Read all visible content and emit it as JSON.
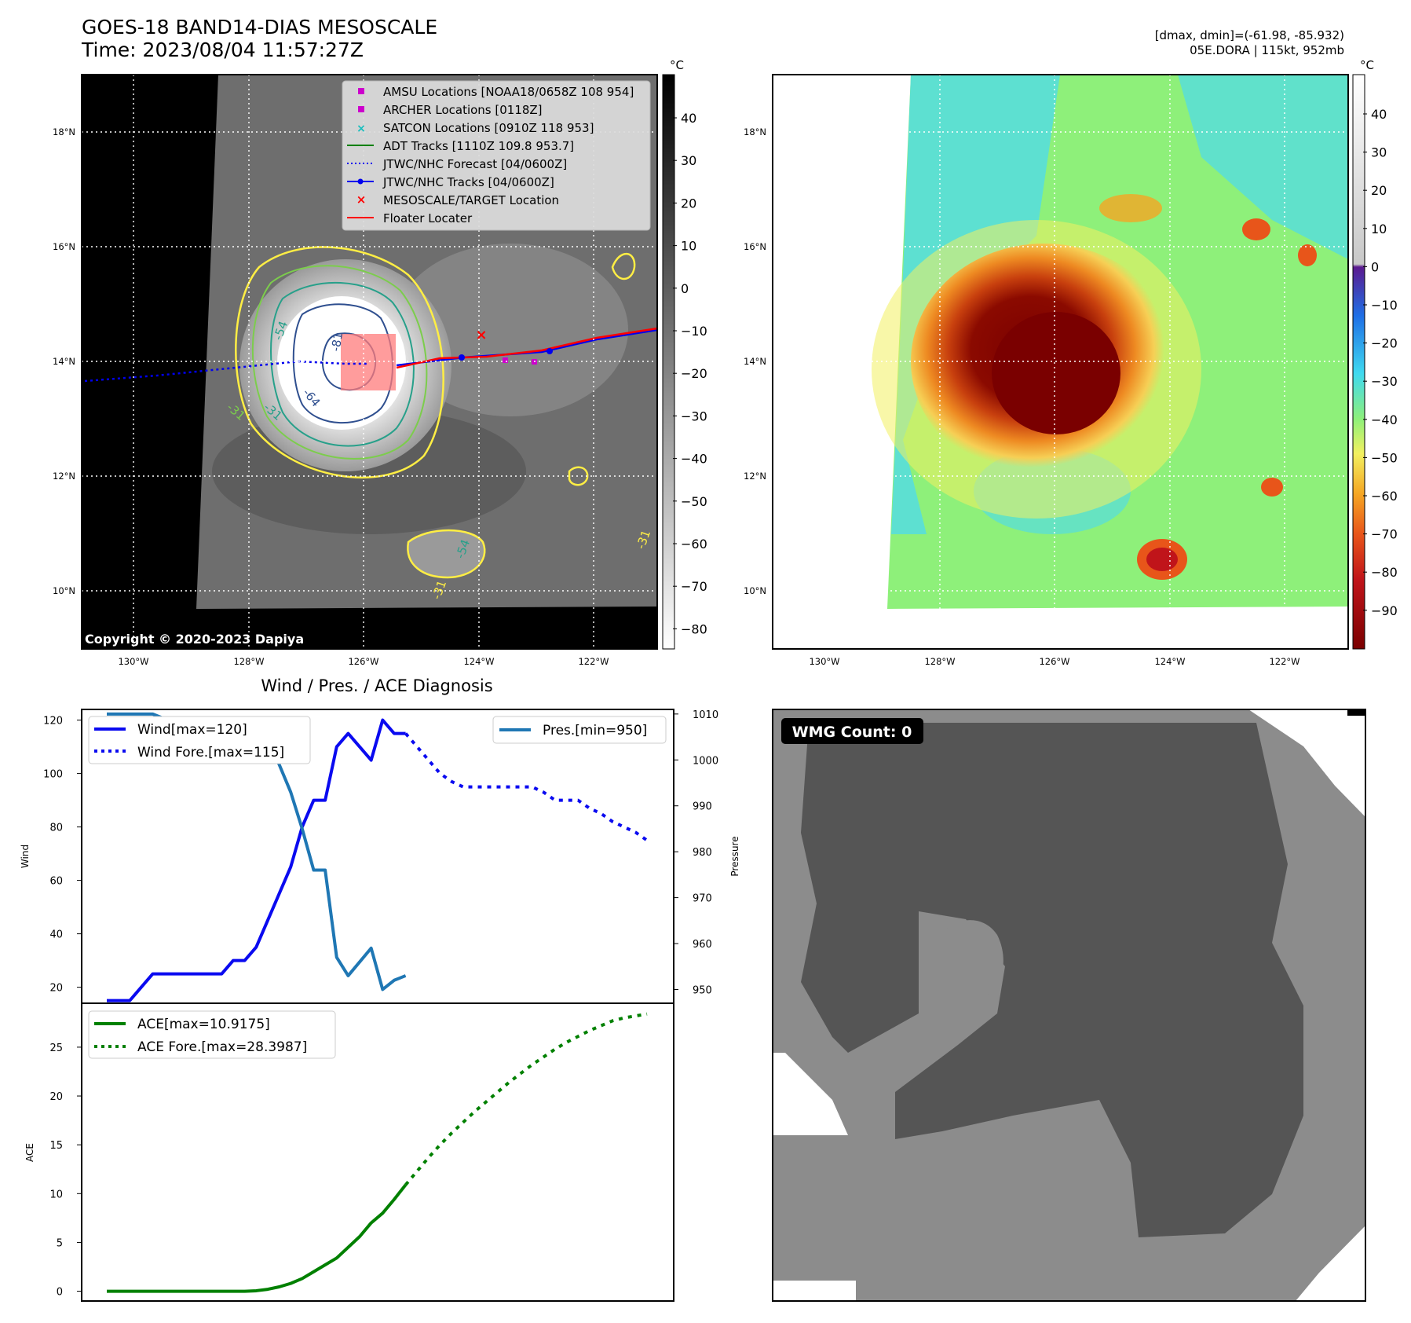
{
  "header": {
    "title_line1": "GOES-18 BAND14-DIAS MESOSCALE",
    "title_line2": "Time: 2023/08/04 11:57:27Z",
    "right_line1": "[dmax, dmin]=(-61.98, -85.932)",
    "right_line2": "05E.DORA | 115kt, 952mb"
  },
  "colors": {
    "wind": "#0a0af0",
    "pressure": "#1f77b4",
    "ace": "#008000",
    "track_red": "#ff0000",
    "contour_yellow": "#ffee44",
    "contour_green": "#7ccd4c",
    "contour_teal": "#27a08a",
    "contour_navy": "#2f4f8f",
    "amsu": "#cc00cc",
    "satcon": "#17bebe"
  },
  "map_left": {
    "colorbar_unit": "°C",
    "colorbar_ticks": [
      "40",
      "30",
      "20",
      "10",
      "0",
      "−10",
      "−20",
      "−30",
      "−40",
      "−50",
      "−60",
      "−70",
      "−80"
    ],
    "copyright": "Copyright © 2020-2023 Dapiya",
    "lat_labels": [
      "18°N",
      "16°N",
      "14°N",
      "12°N",
      "10°N"
    ],
    "lon_labels": [
      "130°W",
      "128°W",
      "126°W",
      "124°W",
      "122°W"
    ],
    "contour_labels": [
      "-81",
      "-54",
      "-31",
      "-31",
      "-64",
      "-54",
      "-31",
      "-31"
    ],
    "legend": [
      {
        "label": "AMSU Locations [NOAA18/0658Z 108 954]",
        "icon": "magenta-square"
      },
      {
        "label": "ARCHER Locations [0118Z]",
        "icon": "magenta-square"
      },
      {
        "label": "SATCON Locations [0910Z 118 953]",
        "icon": "teal-x"
      },
      {
        "label": "ADT Tracks [1110Z 109.8 953.7]",
        "icon": "green-line"
      },
      {
        "label": "JTWC/NHC Forecast [04/0600Z]",
        "icon": "blue-dotted-line"
      },
      {
        "label": "JTWC/NHC Tracks [04/0600Z]",
        "icon": "blue-line-dot"
      },
      {
        "label": "MESOSCALE/TARGET Location",
        "icon": "red-x"
      },
      {
        "label": "Floater Locater",
        "icon": "red-line"
      }
    ]
  },
  "map_right": {
    "colorbar_unit": "°C",
    "colorbar_ticks": [
      "40",
      "30",
      "20",
      "10",
      "0",
      "−10",
      "−20",
      "−30",
      "−40",
      "−50",
      "−60",
      "−70",
      "−80",
      "−90"
    ],
    "lat_labels": [
      "18°N",
      "16°N",
      "14°N",
      "12°N",
      "10°N"
    ],
    "lon_labels": [
      "130°W",
      "128°W",
      "126°W",
      "124°W",
      "122°W"
    ]
  },
  "wmg": {
    "label": "WMG Count: 0"
  },
  "chart_data": [
    {
      "type": "line",
      "title": "Wind / Pres. / ACE Diagnosis",
      "ylabel": "Wind",
      "ylabel_right": "Pressure",
      "ylim": [
        14,
        124
      ],
      "ylim_right": [
        947,
        1011
      ],
      "yticks": [
        20,
        40,
        60,
        80,
        100,
        120
      ],
      "yticks_right": [
        950,
        960,
        970,
        980,
        990,
        1000,
        1010
      ],
      "x": [
        0,
        1,
        2,
        3,
        4,
        5,
        6,
        7,
        8,
        9,
        10,
        11,
        12,
        13,
        14,
        15,
        16,
        17,
        18,
        19,
        20,
        21,
        22,
        23,
        24,
        25,
        26,
        27,
        28,
        29,
        30,
        31,
        32,
        33,
        34,
        35,
        36,
        37,
        38,
        39,
        40,
        41,
        42,
        43,
        44,
        45,
        46,
        47
      ],
      "series": [
        {
          "name": "Wind[max=120]",
          "x": [
            0,
            1,
            2,
            3,
            4,
            5,
            6,
            7,
            8,
            9,
            10,
            11,
            12,
            13,
            14,
            15,
            16,
            17,
            18,
            19,
            20,
            21,
            22,
            23,
            24,
            25,
            26
          ],
          "values": [
            15,
            15,
            15,
            20,
            25,
            25,
            25,
            25,
            25,
            25,
            25,
            30,
            30,
            35,
            45,
            55,
            65,
            80,
            90,
            90,
            110,
            115,
            110,
            105,
            120,
            115,
            115
          ]
        },
        {
          "name": "Wind Fore.[max=115]",
          "x": [
            26,
            27,
            28,
            29,
            30,
            31,
            32,
            33,
            34,
            35,
            36,
            37,
            38,
            39,
            40,
            41,
            42,
            43,
            44,
            45,
            46,
            47
          ],
          "values": [
            115,
            110,
            105,
            100,
            97,
            95,
            95,
            95,
            95,
            95,
            95,
            95,
            93,
            90,
            90,
            90,
            87,
            85,
            82,
            80,
            78,
            75
          ]
        },
        {
          "name": "Pres.[min=950]",
          "axis": "right",
          "x": [
            0,
            1,
            2,
            3,
            4,
            5,
            6,
            7,
            8,
            9,
            10,
            11,
            12,
            13,
            14,
            15,
            16,
            17,
            18,
            19,
            20,
            21,
            22,
            23,
            24,
            25,
            26
          ],
          "values": [
            1010,
            1010,
            1010,
            1010,
            1010,
            1009,
            1009,
            1009,
            1009,
            1009,
            1009,
            1009,
            1008,
            1007,
            1004,
            999,
            993,
            985,
            976,
            976,
            957,
            953,
            956,
            959,
            950,
            952,
            953
          ]
        }
      ]
    },
    {
      "type": "line",
      "ylabel": "ACE",
      "ylim": [
        -1,
        29.5
      ],
      "yticks": [
        0,
        5,
        10,
        15,
        20,
        25
      ],
      "series": [
        {
          "name": "ACE[max=10.9175]",
          "x": [
            0,
            2,
            4,
            6,
            8,
            10,
            12,
            13,
            14,
            15,
            16,
            17,
            18,
            19,
            20,
            21,
            22,
            23,
            24,
            25,
            26
          ],
          "values": [
            0,
            0,
            0,
            0,
            0,
            0,
            0,
            0.05,
            0.2,
            0.45,
            0.8,
            1.3,
            2.0,
            2.7,
            3.4,
            4.5,
            5.6,
            7.0,
            8.0,
            9.4,
            10.9
          ]
        },
        {
          "name": "ACE Fore.[max=28.3987]",
          "x": [
            26,
            27,
            28,
            29,
            30,
            31,
            32,
            33,
            34,
            35,
            36,
            37,
            38,
            39,
            40,
            41,
            42,
            43,
            44,
            45,
            46,
            47
          ],
          "values": [
            10.9,
            12.3,
            13.7,
            15.0,
            16.2,
            17.3,
            18.4,
            19.4,
            20.4,
            21.4,
            22.3,
            23.2,
            24.0,
            24.8,
            25.5,
            26.1,
            26.7,
            27.2,
            27.7,
            28.0,
            28.2,
            28.4
          ]
        }
      ]
    }
  ]
}
